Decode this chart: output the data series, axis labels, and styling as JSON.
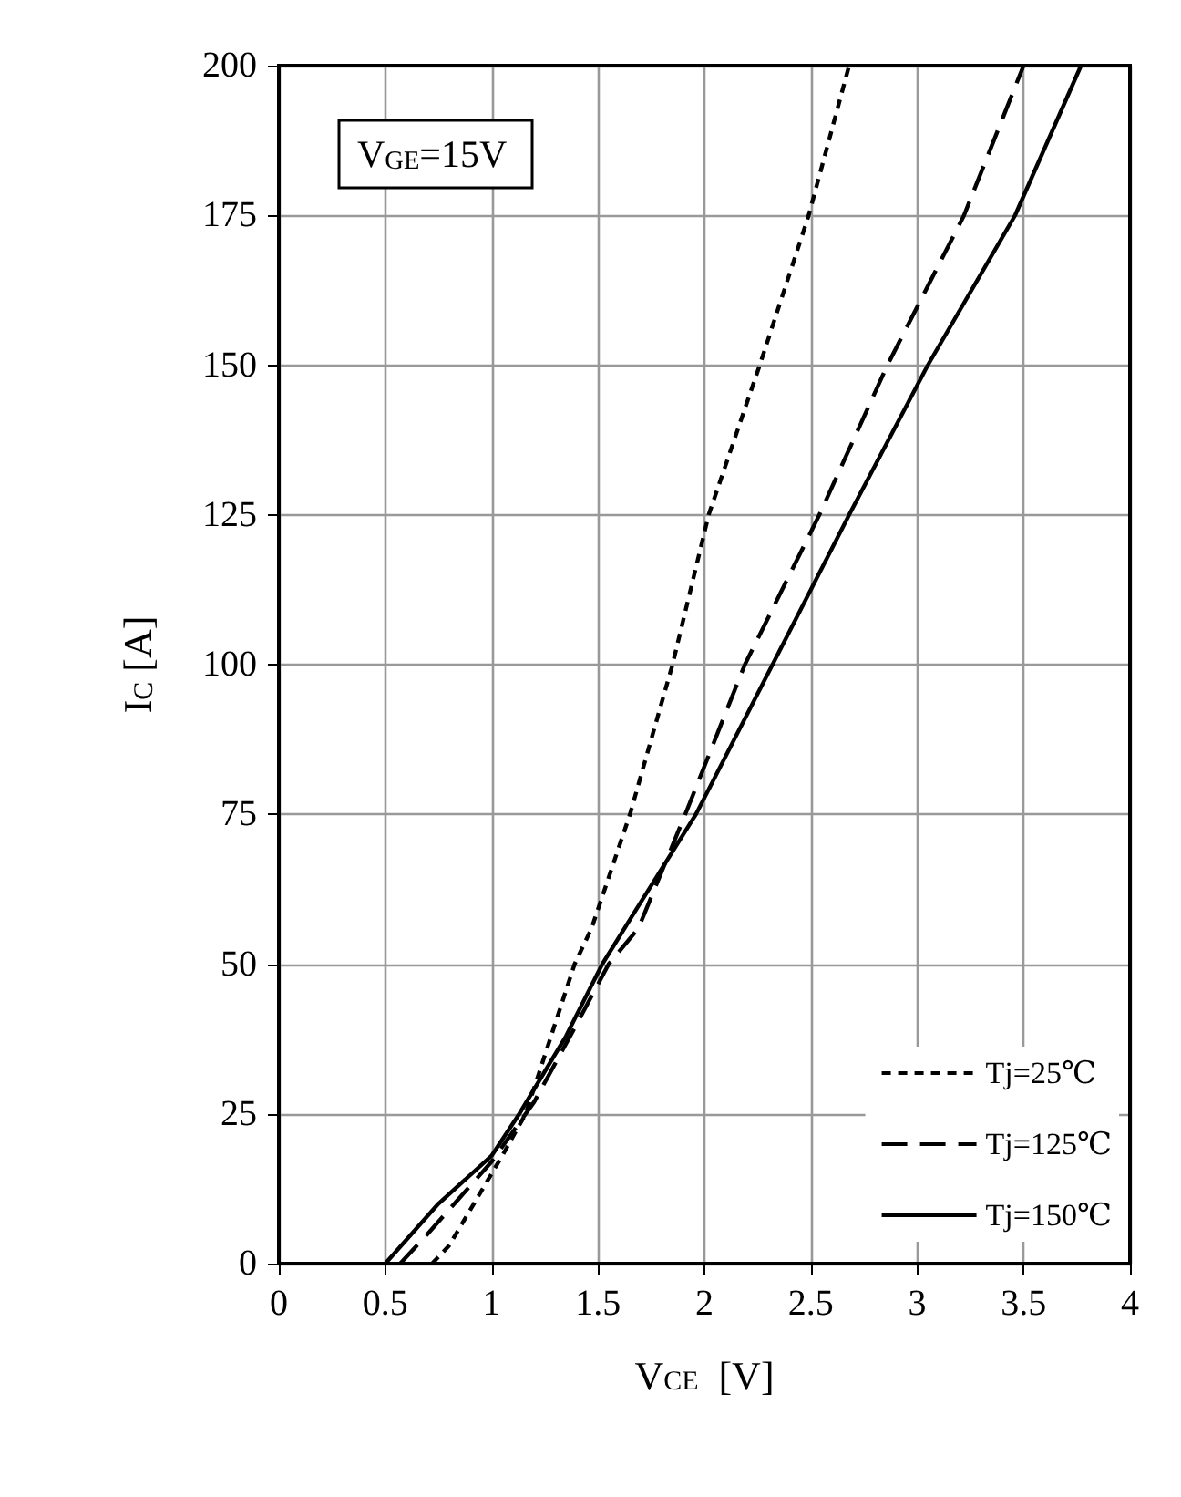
{
  "chart_data": {
    "type": "line",
    "xlabel": "V$_{CE}$  [V]",
    "ylabel": "I$_{C}$ [A]",
    "annotations": [
      "V$_{GE}$=15V"
    ],
    "xlim": [
      0,
      4
    ],
    "xticks": [
      0,
      0.5,
      1,
      1.5,
      2,
      2.5,
      3,
      3.5,
      4
    ],
    "ylim": [
      0,
      200
    ],
    "yticks": [
      0,
      25,
      50,
      75,
      100,
      125,
      150,
      175,
      200
    ],
    "grid": true,
    "legend": "bottom right",
    "marker": "none",
    "series": [
      {
        "name": "Tj=25℃",
        "color": "#000000",
        "line_style": "dotted",
        "x": [
          0.72,
          0.8,
          0.9,
          1.05,
          1.16,
          1.39,
          1.47,
          1.65,
          1.85,
          2.02,
          2.26,
          2.49,
          2.68
        ],
        "values": [
          0,
          3,
          9,
          18,
          25,
          50,
          56,
          75,
          100,
          125,
          150,
          175,
          200
        ]
      },
      {
        "name": "Tj=125℃",
        "color": "#000000",
        "line_style": "dashed",
        "x": [
          0.57,
          0.7,
          0.85,
          1.0,
          1.2,
          1.4,
          1.55,
          1.69,
          1.91,
          2.19,
          2.54,
          2.86,
          3.22,
          3.5
        ],
        "values": [
          0,
          5,
          11,
          17,
          27,
          40,
          50,
          56,
          75,
          100,
          125,
          150,
          175,
          200
        ]
      },
      {
        "name": "Tj=150℃",
        "color": "#000000",
        "line_style": "solid",
        "x": [
          0.5,
          0.75,
          1.0,
          1.13,
          1.35,
          1.52,
          1.66,
          1.96,
          2.32,
          2.68,
          3.05,
          3.46,
          3.77
        ],
        "values": [
          0,
          10,
          18,
          25,
          38,
          50,
          58,
          75,
          100,
          125,
          150,
          175,
          200
        ]
      }
    ]
  }
}
